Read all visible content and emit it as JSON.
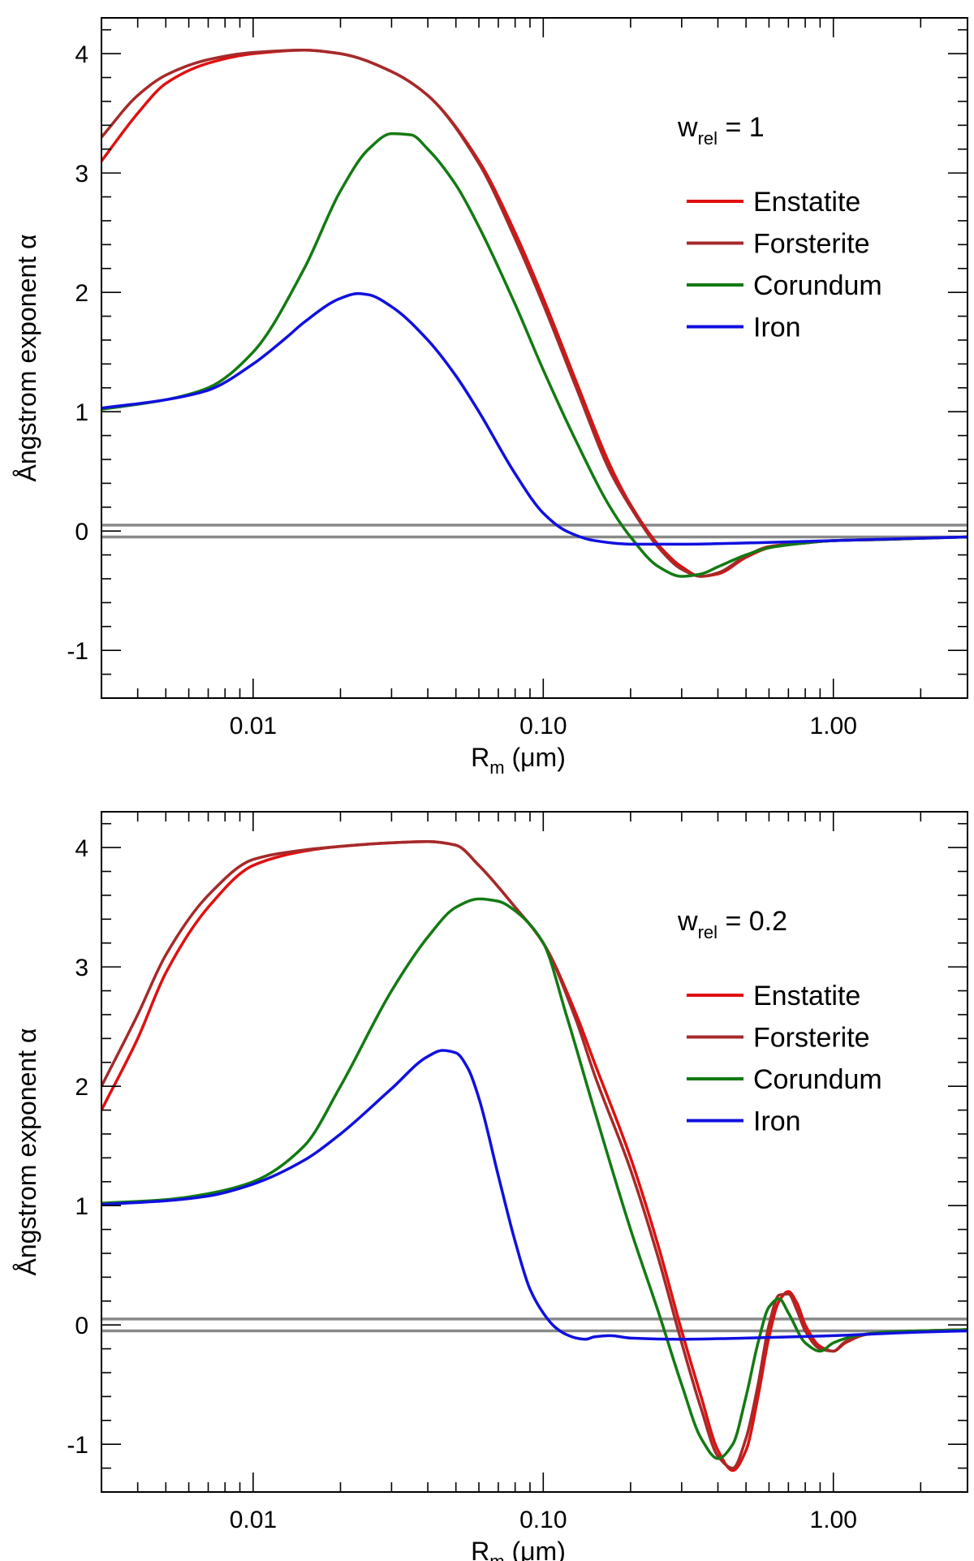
{
  "chart_data": [
    {
      "type": "line",
      "x_scale": "log",
      "annotation": {
        "base": "w",
        "sub": "rel",
        "text": " = 1"
      },
      "xlabel": {
        "base": "R",
        "sub": "m",
        "text": " (μm)"
      },
      "ylabel": "Ångstrom exponent α",
      "xlim": [
        0.003,
        2.9
      ],
      "ylim": [
        -1.4,
        4.3
      ],
      "xticks": [
        0.01,
        0.1,
        1.0
      ],
      "xtick_labels": [
        "0.01",
        "0.10",
        "1.00"
      ],
      "yticks": [
        -1,
        0,
        1,
        2,
        3,
        4
      ],
      "ytick_labels": [
        "-1",
        "0",
        "1",
        "2",
        "3",
        "4"
      ],
      "reference_lines": [
        0.05,
        -0.05
      ],
      "legend_position": "right",
      "series": [
        {
          "name": "Enstatite",
          "color": "#e01010",
          "x": [
            0.003,
            0.004,
            0.005,
            0.007,
            0.01,
            0.015,
            0.02,
            0.03,
            0.04,
            0.06,
            0.08,
            0.1,
            0.13,
            0.17,
            0.2,
            0.25,
            0.3,
            0.35,
            0.4,
            0.5,
            0.6,
            0.8,
            1.0,
            1.5,
            2.0,
            2.9
          ],
          "y": [
            3.1,
            3.5,
            3.75,
            3.92,
            4.0,
            4.03,
            4.0,
            3.85,
            3.65,
            3.1,
            2.5,
            1.95,
            1.25,
            0.55,
            0.22,
            -0.12,
            -0.3,
            -0.38,
            -0.36,
            -0.22,
            -0.14,
            -0.1,
            -0.08,
            -0.07,
            -0.06,
            -0.05
          ]
        },
        {
          "name": "Forsterite",
          "color": "#a52a2a",
          "x": [
            0.003,
            0.004,
            0.005,
            0.007,
            0.01,
            0.015,
            0.02,
            0.03,
            0.04,
            0.06,
            0.08,
            0.1,
            0.13,
            0.17,
            0.2,
            0.25,
            0.3,
            0.35,
            0.4,
            0.5,
            0.6,
            0.8,
            1.0,
            1.5,
            2.0,
            2.9
          ],
          "y": [
            3.3,
            3.65,
            3.82,
            3.95,
            4.01,
            4.03,
            4.0,
            3.85,
            3.65,
            3.08,
            2.45,
            1.9,
            1.2,
            0.5,
            0.2,
            -0.14,
            -0.32,
            -0.38,
            -0.35,
            -0.21,
            -0.13,
            -0.1,
            -0.08,
            -0.07,
            -0.06,
            -0.05
          ]
        },
        {
          "name": "Corundum",
          "color": "#137a13",
          "x": [
            0.003,
            0.005,
            0.007,
            0.01,
            0.015,
            0.02,
            0.025,
            0.03,
            0.035,
            0.04,
            0.05,
            0.06,
            0.08,
            0.1,
            0.13,
            0.17,
            0.2,
            0.25,
            0.3,
            0.35,
            0.4,
            0.5,
            0.6,
            0.8,
            1.0,
            1.5,
            2.9
          ],
          "y": [
            1.02,
            1.1,
            1.2,
            1.5,
            2.2,
            2.85,
            3.2,
            3.33,
            3.32,
            3.2,
            2.9,
            2.55,
            1.9,
            1.35,
            0.75,
            0.2,
            -0.05,
            -0.3,
            -0.38,
            -0.36,
            -0.3,
            -0.2,
            -0.14,
            -0.1,
            -0.08,
            -0.07,
            -0.05
          ]
        },
        {
          "name": "Iron",
          "color": "#1010e0",
          "x": [
            0.003,
            0.005,
            0.007,
            0.01,
            0.013,
            0.015,
            0.02,
            0.023,
            0.025,
            0.03,
            0.04,
            0.05,
            0.06,
            0.08,
            0.1,
            0.12,
            0.15,
            0.2,
            0.3,
            0.5,
            1.0,
            2.0,
            2.9
          ],
          "y": [
            1.03,
            1.1,
            1.18,
            1.4,
            1.62,
            1.75,
            1.95,
            1.99,
            1.98,
            1.88,
            1.6,
            1.3,
            1.0,
            0.48,
            0.15,
            0.0,
            -0.08,
            -0.11,
            -0.11,
            -0.1,
            -0.08,
            -0.06,
            -0.05
          ]
        }
      ]
    },
    {
      "type": "line",
      "x_scale": "log",
      "annotation": {
        "base": "w",
        "sub": "rel",
        "text": " = 0.2"
      },
      "xlabel": {
        "base": "R",
        "sub": "m",
        "text": " (μm)"
      },
      "ylabel": "Ångstrom exponent α",
      "xlim": [
        0.003,
        2.9
      ],
      "ylim": [
        -1.4,
        4.3
      ],
      "xticks": [
        0.01,
        0.1,
        1.0
      ],
      "xtick_labels": [
        "0.01",
        "0.10",
        "1.00"
      ],
      "yticks": [
        -1,
        0,
        1,
        2,
        3,
        4
      ],
      "ytick_labels": [
        "-1",
        "0",
        "1",
        "2",
        "3",
        "4"
      ],
      "reference_lines": [
        0.05,
        -0.05
      ],
      "legend_position": "right",
      "series": [
        {
          "name": "Enstatite",
          "color": "#e01010",
          "x": [
            0.003,
            0.004,
            0.005,
            0.007,
            0.01,
            0.015,
            0.02,
            0.03,
            0.04,
            0.05,
            0.06,
            0.08,
            0.1,
            0.13,
            0.15,
            0.2,
            0.25,
            0.3,
            0.35,
            0.4,
            0.45,
            0.5,
            0.55,
            0.6,
            0.65,
            0.7,
            0.75,
            0.8,
            0.9,
            1.0,
            1.1,
            1.3,
            1.6,
            2.0,
            2.9
          ],
          "y": [
            1.8,
            2.4,
            2.95,
            3.5,
            3.85,
            3.97,
            4.01,
            4.04,
            4.05,
            4.02,
            3.85,
            3.5,
            3.2,
            2.6,
            2.2,
            1.4,
            0.65,
            -0.05,
            -0.6,
            -1.05,
            -1.22,
            -1.05,
            -0.6,
            -0.1,
            0.2,
            0.28,
            0.18,
            0.0,
            -0.18,
            -0.22,
            -0.15,
            -0.08,
            -0.06,
            -0.05,
            -0.04
          ]
        },
        {
          "name": "Forsterite",
          "color": "#a52a2a",
          "x": [
            0.003,
            0.004,
            0.005,
            0.007,
            0.01,
            0.015,
            0.02,
            0.03,
            0.04,
            0.05,
            0.06,
            0.08,
            0.1,
            0.13,
            0.15,
            0.2,
            0.25,
            0.3,
            0.35,
            0.4,
            0.45,
            0.5,
            0.55,
            0.6,
            0.65,
            0.7,
            0.75,
            0.8,
            0.9,
            1.0,
            1.1,
            1.3,
            1.6,
            2.0,
            2.9
          ],
          "y": [
            2.0,
            2.6,
            3.1,
            3.6,
            3.9,
            3.98,
            4.01,
            4.04,
            4.05,
            4.02,
            3.85,
            3.5,
            3.2,
            2.55,
            2.1,
            1.3,
            0.55,
            -0.15,
            -0.7,
            -1.1,
            -1.2,
            -0.95,
            -0.5,
            0.0,
            0.25,
            0.26,
            0.12,
            -0.05,
            -0.2,
            -0.22,
            -0.14,
            -0.08,
            -0.06,
            -0.05,
            -0.04
          ]
        },
        {
          "name": "Corundum",
          "color": "#137a13",
          "x": [
            0.003,
            0.005,
            0.007,
            0.01,
            0.015,
            0.02,
            0.03,
            0.04,
            0.05,
            0.06,
            0.07,
            0.08,
            0.1,
            0.12,
            0.15,
            0.2,
            0.25,
            0.3,
            0.35,
            0.4,
            0.45,
            0.5,
            0.55,
            0.6,
            0.65,
            0.7,
            0.8,
            0.9,
            1.0,
            1.2,
            1.5,
            2.0,
            2.9
          ],
          "y": [
            1.02,
            1.05,
            1.1,
            1.2,
            1.5,
            2.0,
            2.8,
            3.25,
            3.5,
            3.57,
            3.55,
            3.47,
            3.2,
            2.6,
            1.8,
            0.8,
            0.1,
            -0.5,
            -0.95,
            -1.12,
            -1.0,
            -0.6,
            -0.15,
            0.15,
            0.22,
            0.1,
            -0.15,
            -0.22,
            -0.15,
            -0.09,
            -0.06,
            -0.05,
            -0.04
          ]
        },
        {
          "name": "Iron",
          "color": "#1010e0",
          "x": [
            0.003,
            0.005,
            0.007,
            0.01,
            0.015,
            0.02,
            0.03,
            0.04,
            0.045,
            0.05,
            0.055,
            0.06,
            0.07,
            0.08,
            0.09,
            0.1,
            0.11,
            0.12,
            0.13,
            0.14,
            0.15,
            0.17,
            0.2,
            0.3,
            0.5,
            1.0,
            2.0,
            2.9
          ],
          "y": [
            1.01,
            1.04,
            1.08,
            1.18,
            1.38,
            1.6,
            1.98,
            2.25,
            2.3,
            2.28,
            2.15,
            1.9,
            1.25,
            0.7,
            0.3,
            0.1,
            -0.02,
            -0.08,
            -0.11,
            -0.12,
            -0.1,
            -0.09,
            -0.11,
            -0.12,
            -0.11,
            -0.09,
            -0.06,
            -0.05
          ]
        }
      ]
    }
  ]
}
